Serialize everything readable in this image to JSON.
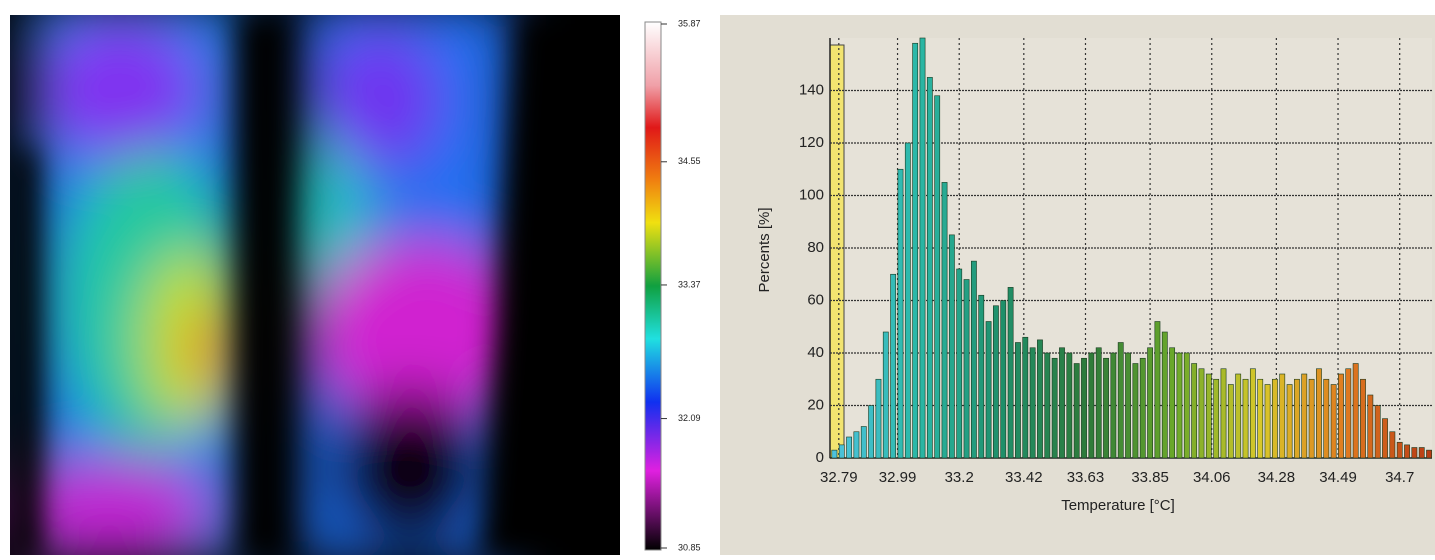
{
  "chart_data": {
    "type": "bar",
    "xlabel": "Temperature [°C]",
    "ylabel": "Percents [%]",
    "x": [
      32.775,
      32.8,
      32.825,
      32.85,
      32.875,
      32.9,
      32.925,
      32.95,
      32.975,
      33.0,
      33.025,
      33.05,
      33.075,
      33.1,
      33.125,
      33.15,
      33.175,
      33.2,
      33.225,
      33.25,
      33.275,
      33.3,
      33.325,
      33.35,
      33.375,
      33.4,
      33.425,
      33.45,
      33.475,
      33.5,
      33.525,
      33.55,
      33.575,
      33.6,
      33.625,
      33.65,
      33.675,
      33.7,
      33.725,
      33.75,
      33.775,
      33.8,
      33.825,
      33.85,
      33.875,
      33.9,
      33.925,
      33.95,
      33.975,
      34.0,
      34.025,
      34.05,
      34.075,
      34.1,
      34.125,
      34.15,
      34.175,
      34.2,
      34.225,
      34.25,
      34.275,
      34.3,
      34.325,
      34.35,
      34.375,
      34.4,
      34.425,
      34.45,
      34.475,
      34.5,
      34.525,
      34.55,
      34.575,
      34.6,
      34.625,
      34.65,
      34.675,
      34.7,
      34.725,
      34.75,
      34.775,
      34.8
    ],
    "values": [
      3,
      5,
      8,
      10,
      12,
      20,
      30,
      48,
      70,
      110,
      120,
      158,
      160,
      145,
      138,
      105,
      85,
      72,
      68,
      75,
      62,
      52,
      58,
      60,
      65,
      44,
      46,
      42,
      45,
      40,
      38,
      42,
      40,
      36,
      38,
      40,
      42,
      38,
      40,
      44,
      40,
      36,
      38,
      42,
      52,
      48,
      42,
      40,
      40,
      36,
      34,
      32,
      30,
      34,
      28,
      32,
      30,
      34,
      30,
      28,
      30,
      32,
      28,
      30,
      32,
      30,
      34,
      30,
      28,
      32,
      34,
      36,
      30,
      24,
      20,
      15,
      10,
      6,
      5,
      4,
      4,
      3
    ],
    "colormap": [
      "#4fc3e0",
      "#2bb8a8",
      "#1f8f6a",
      "#2e7a3a",
      "#6aa82a",
      "#d8c82a",
      "#e07a20",
      "#b83a14"
    ],
    "xlim": [
      32.76,
      34.81
    ],
    "ylim": [
      0,
      160
    ],
    "xticks": [
      32.79,
      32.99,
      33.2,
      33.42,
      33.63,
      33.85,
      34.06,
      34.28,
      34.49,
      34.7
    ],
    "yticks": [
      0,
      20,
      40,
      60,
      80,
      100,
      120,
      140
    ],
    "grid": true,
    "colorbar": {
      "ylim": [
        30.85,
        35.87
      ],
      "yticks": [
        30.85,
        32.09,
        33.37,
        34.55,
        35.87
      ]
    }
  }
}
